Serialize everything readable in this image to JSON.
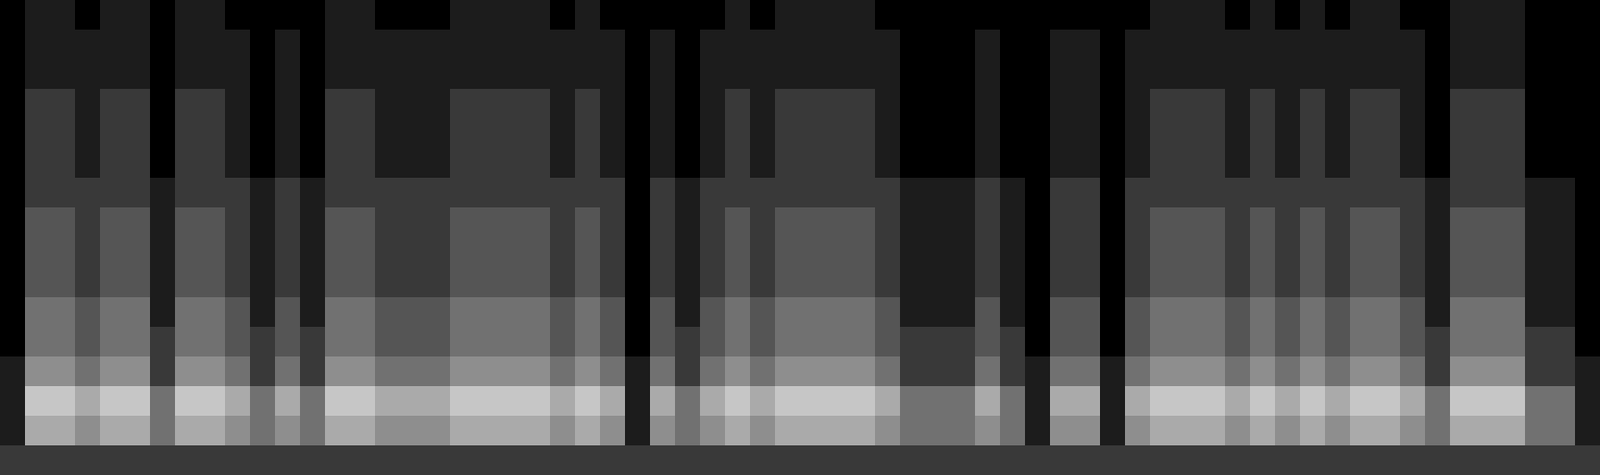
{
  "chart_data": {
    "type": "heatmap",
    "tick_labels": false,
    "color": "#ffffff",
    "zlim": [
      0,
      9
    ],
    "cells": [
      [
        0,
        1,
        1,
        0,
        1,
        1,
        0,
        1,
        1,
        0,
        0,
        0,
        0,
        1,
        1,
        0,
        0,
        0,
        1,
        1,
        1,
        1,
        0,
        1,
        0,
        0,
        0,
        0,
        0,
        1,
        0,
        1,
        1,
        1,
        1,
        0,
        0,
        0,
        0,
        0,
        0,
        0,
        0,
        0,
        0,
        0,
        1,
        1,
        1,
        0,
        1,
        0,
        1,
        0,
        1,
        1,
        0,
        0,
        1,
        1,
        1,
        0,
        0,
        0
      ],
      [
        0,
        1,
        1,
        1,
        1,
        1,
        0,
        1,
        1,
        1,
        0,
        1,
        0,
        1,
        1,
        1,
        1,
        1,
        1,
        1,
        1,
        1,
        1,
        1,
        1,
        0,
        1,
        0,
        1,
        1,
        1,
        1,
        1,
        1,
        1,
        1,
        0,
        0,
        0,
        1,
        0,
        0,
        1,
        1,
        0,
        1,
        1,
        1,
        1,
        1,
        1,
        1,
        1,
        1,
        1,
        1,
        1,
        0,
        1,
        1,
        1,
        0,
        0,
        0
      ],
      [
        0,
        1,
        1,
        1,
        1,
        1,
        0,
        1,
        1,
        1,
        0,
        1,
        0,
        1,
        1,
        1,
        1,
        1,
        1,
        1,
        1,
        1,
        1,
        1,
        1,
        0,
        1,
        0,
        1,
        1,
        1,
        1,
        1,
        1,
        1,
        1,
        0,
        0,
        0,
        1,
        0,
        0,
        1,
        1,
        0,
        1,
        1,
        1,
        1,
        1,
        1,
        1,
        1,
        1,
        1,
        1,
        1,
        0,
        1,
        1,
        1,
        0,
        0,
        0
      ],
      [
        0,
        2,
        2,
        1,
        2,
        2,
        0,
        2,
        2,
        1,
        0,
        1,
        0,
        2,
        2,
        1,
        1,
        1,
        2,
        2,
        2,
        2,
        1,
        2,
        1,
        0,
        1,
        0,
        1,
        2,
        1,
        2,
        2,
        2,
        2,
        1,
        0,
        0,
        0,
        1,
        0,
        0,
        1,
        1,
        0,
        1,
        2,
        2,
        2,
        1,
        2,
        1,
        2,
        1,
        2,
        2,
        1,
        0,
        2,
        2,
        2,
        0,
        0,
        0
      ],
      [
        0,
        2,
        2,
        1,
        2,
        2,
        0,
        2,
        2,
        1,
        0,
        1,
        0,
        2,
        2,
        1,
        1,
        1,
        2,
        2,
        2,
        2,
        1,
        2,
        1,
        0,
        1,
        0,
        1,
        2,
        1,
        2,
        2,
        2,
        2,
        1,
        0,
        0,
        0,
        1,
        0,
        0,
        1,
        1,
        0,
        1,
        2,
        2,
        2,
        1,
        2,
        1,
        2,
        1,
        2,
        2,
        1,
        0,
        2,
        2,
        2,
        0,
        0,
        0
      ],
      [
        0,
        2,
        2,
        1,
        2,
        2,
        0,
        2,
        2,
        1,
        0,
        1,
        0,
        2,
        2,
        1,
        1,
        1,
        2,
        2,
        2,
        2,
        1,
        2,
        1,
        0,
        1,
        0,
        1,
        2,
        1,
        2,
        2,
        2,
        2,
        1,
        0,
        0,
        0,
        1,
        0,
        0,
        1,
        1,
        0,
        1,
        2,
        2,
        2,
        1,
        2,
        1,
        2,
        1,
        2,
        2,
        1,
        0,
        2,
        2,
        2,
        0,
        0,
        0
      ],
      [
        0,
        2,
        2,
        2,
        2,
        2,
        1,
        2,
        2,
        2,
        1,
        2,
        1,
        2,
        2,
        2,
        2,
        2,
        2,
        2,
        2,
        2,
        2,
        2,
        2,
        0,
        2,
        1,
        2,
        2,
        2,
        2,
        2,
        2,
        2,
        2,
        1,
        1,
        1,
        2,
        1,
        0,
        2,
        2,
        0,
        2,
        2,
        2,
        2,
        2,
        2,
        2,
        2,
        2,
        2,
        2,
        2,
        1,
        2,
        2,
        2,
        1,
        1,
        0
      ],
      [
        0,
        3,
        3,
        2,
        3,
        3,
        1,
        3,
        3,
        2,
        1,
        2,
        1,
        3,
        3,
        2,
        2,
        2,
        3,
        3,
        3,
        3,
        2,
        3,
        2,
        0,
        2,
        1,
        2,
        3,
        2,
        3,
        3,
        3,
        3,
        2,
        1,
        1,
        1,
        2,
        1,
        0,
        2,
        2,
        0,
        2,
        3,
        3,
        3,
        2,
        3,
        2,
        3,
        2,
        3,
        3,
        2,
        1,
        3,
        3,
        3,
        1,
        1,
        0
      ],
      [
        0,
        3,
        3,
        2,
        3,
        3,
        1,
        3,
        3,
        2,
        1,
        2,
        1,
        3,
        3,
        2,
        2,
        2,
        3,
        3,
        3,
        3,
        2,
        3,
        2,
        0,
        2,
        1,
        2,
        3,
        2,
        3,
        3,
        3,
        3,
        2,
        1,
        1,
        1,
        2,
        1,
        0,
        2,
        2,
        0,
        2,
        3,
        3,
        3,
        2,
        3,
        2,
        3,
        2,
        3,
        3,
        2,
        1,
        3,
        3,
        3,
        1,
        1,
        0
      ],
      [
        0,
        3,
        3,
        2,
        3,
        3,
        1,
        3,
        3,
        2,
        1,
        2,
        1,
        3,
        3,
        2,
        2,
        2,
        3,
        3,
        3,
        3,
        2,
        3,
        2,
        0,
        2,
        1,
        2,
        3,
        2,
        3,
        3,
        3,
        3,
        2,
        1,
        1,
        1,
        2,
        1,
        0,
        2,
        2,
        0,
        2,
        3,
        3,
        3,
        2,
        3,
        2,
        3,
        2,
        3,
        3,
        2,
        1,
        3,
        3,
        3,
        1,
        1,
        0
      ],
      [
        0,
        4,
        4,
        3,
        4,
        4,
        1,
        4,
        4,
        3,
        1,
        3,
        1,
        4,
        4,
        3,
        3,
        3,
        4,
        4,
        4,
        4,
        3,
        4,
        3,
        0,
        3,
        1,
        3,
        4,
        3,
        4,
        4,
        4,
        4,
        3,
        1,
        1,
        1,
        3,
        1,
        0,
        3,
        3,
        0,
        3,
        4,
        4,
        4,
        3,
        4,
        3,
        4,
        3,
        4,
        4,
        3,
        1,
        4,
        4,
        4,
        1,
        1,
        0
      ],
      [
        0,
        4,
        4,
        3,
        4,
        4,
        2,
        4,
        4,
        3,
        2,
        3,
        2,
        4,
        4,
        3,
        3,
        3,
        4,
        4,
        4,
        4,
        3,
        4,
        3,
        0,
        3,
        2,
        3,
        4,
        3,
        4,
        4,
        4,
        4,
        3,
        2,
        2,
        2,
        3,
        2,
        0,
        3,
        3,
        0,
        3,
        4,
        4,
        4,
        3,
        4,
        3,
        4,
        3,
        4,
        4,
        3,
        2,
        4,
        4,
        4,
        2,
        2,
        0
      ],
      [
        1,
        5,
        5,
        4,
        5,
        5,
        2,
        5,
        5,
        4,
        2,
        4,
        2,
        5,
        5,
        4,
        4,
        4,
        5,
        5,
        5,
        5,
        4,
        5,
        4,
        1,
        4,
        2,
        4,
        5,
        4,
        5,
        5,
        5,
        5,
        4,
        2,
        2,
        2,
        4,
        2,
        1,
        4,
        4,
        1,
        4,
        5,
        5,
        5,
        4,
        5,
        4,
        5,
        4,
        5,
        5,
        4,
        2,
        5,
        5,
        5,
        2,
        2,
        1
      ],
      [
        1,
        7,
        7,
        6,
        7,
        7,
        4,
        7,
        7,
        6,
        4,
        6,
        4,
        7,
        7,
        6,
        6,
        6,
        7,
        7,
        7,
        7,
        6,
        7,
        6,
        1,
        6,
        4,
        6,
        7,
        6,
        7,
        7,
        7,
        7,
        6,
        4,
        4,
        4,
        6,
        4,
        1,
        6,
        6,
        1,
        6,
        7,
        7,
        7,
        6,
        7,
        6,
        7,
        6,
        7,
        7,
        6,
        4,
        7,
        7,
        7,
        4,
        4,
        1
      ],
      [
        1,
        6,
        6,
        5,
        6,
        6,
        4,
        6,
        6,
        5,
        4,
        5,
        4,
        6,
        6,
        5,
        5,
        5,
        6,
        6,
        6,
        6,
        5,
        6,
        5,
        1,
        5,
        4,
        5,
        6,
        5,
        6,
        6,
        6,
        6,
        5,
        4,
        4,
        4,
        5,
        4,
        1,
        5,
        5,
        1,
        5,
        6,
        6,
        6,
        5,
        6,
        5,
        6,
        5,
        6,
        6,
        5,
        4,
        6,
        6,
        6,
        4,
        4,
        1
      ],
      [
        2,
        2,
        2,
        2,
        2,
        2,
        2,
        2,
        2,
        2,
        2,
        2,
        2,
        2,
        2,
        2,
        2,
        2,
        2,
        2,
        2,
        2,
        2,
        2,
        2,
        2,
        2,
        2,
        2,
        2,
        2,
        2,
        2,
        2,
        2,
        2,
        2,
        2,
        2,
        2,
        2,
        2,
        2,
        2,
        2,
        2,
        2,
        2,
        2,
        2,
        2,
        2,
        2,
        2,
        2,
        2,
        2,
        2,
        2,
        2,
        2,
        2,
        2,
        2
      ]
    ]
  }
}
